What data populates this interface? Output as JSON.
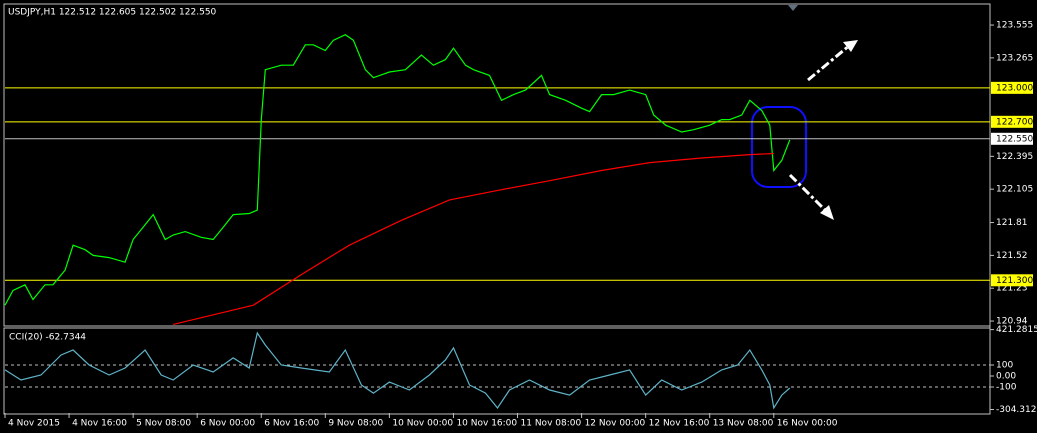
{
  "chart_data": [
    {
      "type": "line",
      "title": "USDJPY,H1  122.512 122.605 122.502 122.550",
      "xlim": [
        0,
        246
      ],
      "ylim": [
        120.905,
        123.732
      ],
      "yticks": [
        123.555,
        123.265,
        122.395,
        122.105,
        121.81,
        121.52,
        121.23,
        120.94
      ],
      "levels": [
        {
          "value": 123,
          "label": "123.000"
        },
        {
          "value": 122.7,
          "label": "122.700"
        },
        {
          "value": 121.3,
          "label": "121.300"
        }
      ],
      "level_color": "#ffff00",
      "bid": {
        "value": 122.55,
        "label": "122.550"
      },
      "series": [
        {
          "name": "Price",
          "color": "#00ff00",
          "x": [
            0,
            2,
            5,
            7,
            10,
            12,
            15,
            17,
            20,
            22,
            26,
            30,
            32,
            35,
            37,
            40,
            42,
            45,
            49,
            52,
            55,
            57,
            61,
            63,
            64,
            65,
            69,
            72,
            75,
            77,
            80,
            82,
            85,
            87,
            90,
            92,
            96,
            100,
            104,
            107,
            110,
            112,
            115,
            117,
            121,
            124,
            127,
            130,
            134,
            136,
            140,
            144,
            146,
            149,
            152,
            156,
            160,
            162,
            165,
            169,
            172,
            176,
            179,
            181,
            184,
            186,
            189,
            191,
            192,
            194,
            196
          ],
          "values": [
            121.08,
            121.21,
            121.26,
            121.13,
            121.26,
            121.26,
            121.39,
            121.61,
            121.57,
            121.52,
            121.5,
            121.46,
            121.66,
            121.79,
            121.88,
            121.66,
            121.7,
            121.73,
            121.68,
            121.66,
            121.79,
            121.88,
            121.89,
            121.92,
            122.72,
            123.16,
            123.2,
            123.2,
            123.38,
            123.38,
            123.33,
            123.42,
            123.47,
            123.42,
            123.16,
            123.09,
            123.14,
            123.16,
            123.29,
            123.2,
            123.25,
            123.35,
            123.2,
            123.16,
            123.11,
            122.89,
            122.94,
            122.98,
            123.11,
            122.94,
            122.89,
            122.82,
            122.79,
            122.94,
            122.94,
            122.98,
            122.94,
            122.76,
            122.67,
            122.61,
            122.63,
            122.67,
            122.72,
            122.72,
            122.76,
            122.89,
            122.8,
            122.67,
            122.27,
            122.36,
            122.54
          ]
        },
        {
          "name": "MA",
          "color": "#ff0000",
          "x": [
            42,
            62,
            74,
            86,
            99,
            111,
            124,
            136,
            149,
            161,
            174,
            186,
            192
          ],
          "values": [
            120.91,
            121.08,
            121.35,
            121.61,
            121.83,
            122.01,
            122.1,
            122.18,
            122.27,
            122.34,
            122.38,
            122.41,
            122.42
          ]
        }
      ]
    },
    {
      "type": "line",
      "title": "CCI(20) -62.7344",
      "xlim": [
        0,
        246
      ],
      "ylim": [
        -336,
        436
      ],
      "yticks": [
        421.2815,
        100,
        {
          "value": 0,
          "label": "0.00"
        },
        -100,
        -304.3123
      ],
      "levels": [
        100,
        -100
      ],
      "xticks": [
        {
          "value": 0,
          "label": "4 Nov 2015"
        },
        {
          "value": 16,
          "label": "4 Nov 16:00"
        },
        {
          "value": 32,
          "label": "5 Nov 08:00"
        },
        {
          "value": 48,
          "label": "6 Nov 00:00"
        },
        {
          "value": 64,
          "label": "6 Nov 16:00"
        },
        {
          "value": 80,
          "label": "9 Nov 08:00"
        },
        {
          "value": 96,
          "label": "10 Nov 00:00"
        },
        {
          "value": 112,
          "label": "10 Nov 16:00"
        },
        {
          "value": 128,
          "label": "11 Nov 08:00"
        },
        {
          "value": 144,
          "label": "12 Nov 00:00"
        },
        {
          "value": 160,
          "label": "12 Nov 16:00"
        },
        {
          "value": 176,
          "label": "13 Nov 08:00"
        },
        {
          "value": 192,
          "label": "16 Nov 00:00"
        }
      ],
      "series": [
        {
          "name": "CCI",
          "color": "#5fb3c8",
          "x": [
            0,
            4,
            9,
            14,
            17,
            21,
            26,
            30,
            35,
            39,
            42,
            47,
            52,
            57,
            61,
            63,
            65,
            69,
            74,
            81,
            85,
            89,
            92,
            96,
            101,
            106,
            110,
            112,
            116,
            120,
            123,
            126,
            131,
            136,
            141,
            146,
            151,
            156,
            160,
            164,
            169,
            174,
            179,
            183,
            186,
            189,
            191,
            192,
            194,
            196
          ],
          "values": [
            55,
            -36,
            9,
            191,
            236,
            100,
            9,
            73,
            236,
            9,
            -36,
            100,
            36,
            164,
            73,
            391,
            282,
            100,
            73,
            36,
            236,
            -82,
            -155,
            -55,
            -127,
            9,
            145,
            255,
            -82,
            -155,
            -291,
            -127,
            -36,
            -127,
            -173,
            -36,
            9,
            55,
            -173,
            -36,
            -127,
            -55,
            55,
            100,
            236,
            55,
            -82,
            -291,
            -173,
            -109
          ]
        }
      ]
    }
  ]
}
